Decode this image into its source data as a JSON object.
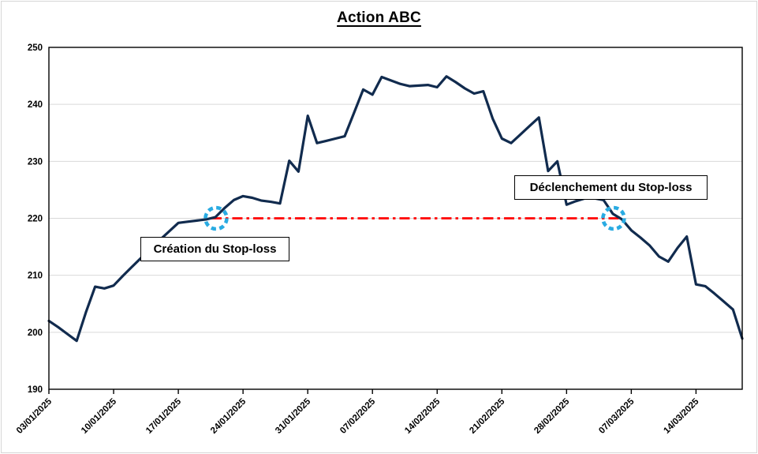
{
  "chart_data": {
    "type": "line",
    "title": "Action ABC",
    "xlabel": "",
    "ylabel": "",
    "ylim": [
      190,
      250
    ],
    "y_ticks": [
      190,
      200,
      210,
      220,
      230,
      240,
      250
    ],
    "grid": true,
    "grid_color": "#D9D9D9",
    "line_color": "#112B4E",
    "x_tick_labels": [
      "03/01/2025",
      "10/01/2025",
      "17/01/2025",
      "24/01/2025",
      "31/01/2025",
      "07/02/2025",
      "14/02/2025",
      "21/02/2025",
      "28/02/2025",
      "07/03/2025",
      "14/03/2025"
    ],
    "dates": [
      "03/01/2025",
      "04/01/2025",
      "05/01/2025",
      "06/01/2025",
      "07/01/2025",
      "08/01/2025",
      "09/01/2025",
      "10/01/2025",
      "11/01/2025",
      "12/01/2025",
      "13/01/2025",
      "14/01/2025",
      "15/01/2025",
      "16/01/2025",
      "17/01/2025",
      "18/01/2025",
      "19/01/2025",
      "20/01/2025",
      "21/01/2025",
      "22/01/2025",
      "23/01/2025",
      "24/01/2025",
      "25/01/2025",
      "26/01/2025",
      "27/01/2025",
      "28/01/2025",
      "29/01/2025",
      "30/01/2025",
      "31/01/2025",
      "01/02/2025",
      "02/02/2025",
      "03/02/2025",
      "04/02/2025",
      "05/02/2025",
      "06/02/2025",
      "07/02/2025",
      "08/02/2025",
      "09/02/2025",
      "10/02/2025",
      "11/02/2025",
      "12/02/2025",
      "13/02/2025",
      "14/02/2025",
      "15/02/2025",
      "16/02/2025",
      "17/02/2025",
      "18/02/2025",
      "19/02/2025",
      "20/02/2025",
      "21/02/2025",
      "22/02/2025",
      "23/02/2025",
      "24/02/2025",
      "25/02/2025",
      "26/02/2025",
      "27/02/2025",
      "28/02/2025",
      "01/03/2025",
      "02/03/2025",
      "03/03/2025",
      "04/03/2025",
      "05/03/2025",
      "06/03/2025",
      "07/03/2025",
      "08/03/2025",
      "09/03/2025",
      "10/03/2025",
      "11/03/2025",
      "12/03/2025",
      "13/03/2025",
      "14/03/2025",
      "15/03/2025",
      "16/03/2025",
      "17/03/2025",
      "18/03/2025",
      "19/03/2025"
    ],
    "values": [
      202,
      200.9,
      199.7,
      198.5,
      203.5,
      208,
      207.7,
      208.2,
      209.9,
      211.5,
      213.1,
      214.6,
      216.2,
      217.7,
      219.2,
      219.4,
      219.6,
      219.8,
      220.2,
      221.8,
      223.2,
      223.9,
      223.6,
      223.1,
      222.9,
      222.6,
      230.1,
      228.2,
      238,
      233.2,
      233.6,
      234,
      234.4,
      238.5,
      242.6,
      241.7,
      244.8,
      244.2,
      243.6,
      243.2,
      243.3,
      243.4,
      243,
      244.9,
      243.9,
      242.8,
      241.9,
      242.3,
      237.5,
      234,
      233.2,
      234.7,
      236.2,
      237.7,
      228.3,
      230,
      222.4,
      223,
      223.5,
      223.5,
      223.2,
      220.8,
      219.8,
      217.9,
      216.6,
      215.2,
      213.3,
      212.4,
      214.8,
      216.8,
      208.4,
      208.1,
      206.8,
      205.4,
      204,
      198.9
    ],
    "stop_loss": {
      "level": 220,
      "line_color": "#FF0000",
      "line_style": "dash-dot",
      "start_date": "21/01/2025",
      "end_date": "05/03/2025",
      "marker_color": "#29ABE2"
    },
    "annotations": [
      {
        "id": "creation",
        "label": "Création du Stop-loss",
        "date": "21/01/2025",
        "value": 220
      },
      {
        "id": "trigger",
        "label": "Déclenchement du Stop-loss",
        "date": "05/03/2025",
        "value": 220
      }
    ]
  }
}
